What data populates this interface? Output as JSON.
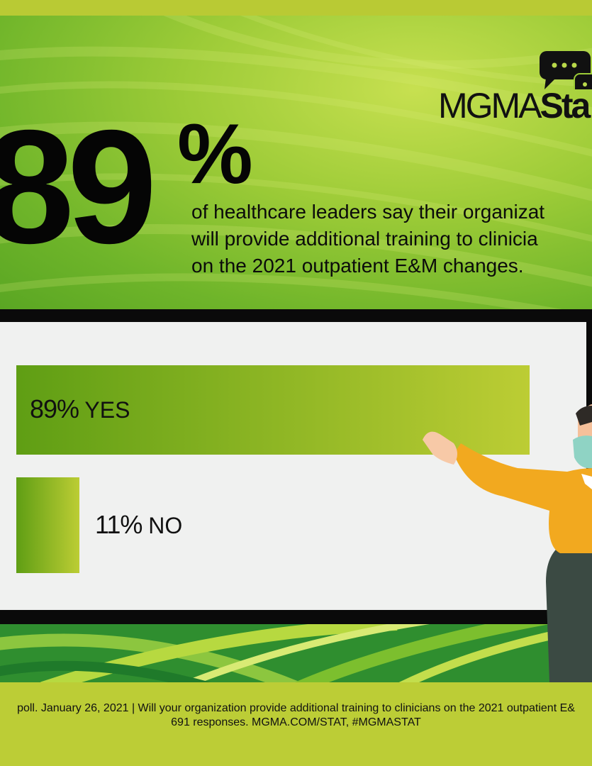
{
  "headline": {
    "big_number": "89",
    "percent_sign": "%",
    "text": "of healthcare leaders say their organizat\nwill provide additional training to clinicia\non the 2021 outpatient E&M changes."
  },
  "logo": {
    "text_light": "MGMA",
    "text_bold": "Sta",
    "icon": "chat-bubbles-icon"
  },
  "chart_data": {
    "type": "bar",
    "orientation": "horizontal",
    "categories": [
      "YES",
      "NO"
    ],
    "values": [
      89,
      11
    ],
    "value_labels": [
      "89%",
      "11%"
    ],
    "xlim": [
      0,
      100
    ],
    "colors": {
      "bar_dark": "#5f9e14",
      "bar_light": "#bccd34"
    }
  },
  "footer": {
    "line1": "poll. January 26, 2021  |  Will your organization provide additional training to clinicians on the 2021 outpatient E&",
    "line2": "691 responses. MGMA.COM/STAT, #MGMASTAT"
  },
  "colors": {
    "brand_green": "#6fb52a",
    "accent_yellow": "#bccd36",
    "ink": "#0b0b0b"
  }
}
